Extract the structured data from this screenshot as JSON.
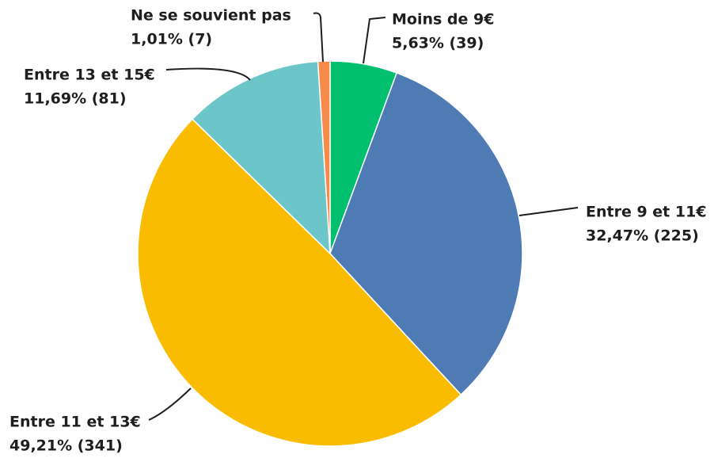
{
  "chart_data": {
    "type": "pie",
    "categories": [
      "Moins de 9€",
      "Entre 9 et 11€",
      "Entre 11 et 13€",
      "Entre 13 et 15€",
      "Ne se souvient pas"
    ],
    "values": [
      5.63,
      32.47,
      49.21,
      11.69,
      1.01
    ],
    "value_labels": [
      "5,63% (39)",
      "32,47% (225)",
      "49,21% (341)",
      "11,69% (81)",
      "1,01% (7)"
    ],
    "colors": [
      "#00bf6f",
      "#4e7bb4",
      "#f9bc00",
      "#6cc5c9",
      "#f58a4b"
    ]
  }
}
